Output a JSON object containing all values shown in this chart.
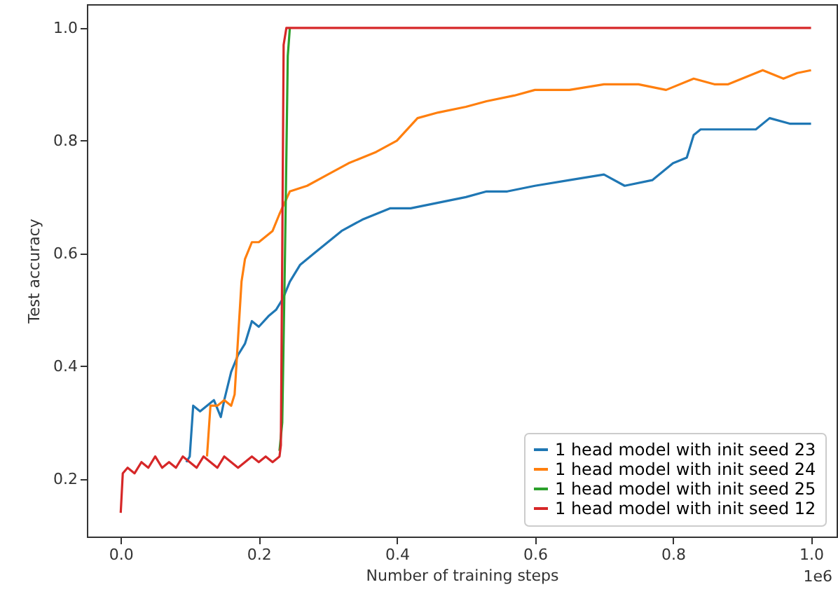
{
  "chart_data": {
    "type": "line",
    "xlabel": "Number of training steps",
    "ylabel": "Test accuracy",
    "annotations": [
      "1e6"
    ],
    "xlim": [
      -0.049,
      1.037
    ],
    "ylim": [
      0.098,
      1.042
    ],
    "xticks": [
      {
        "value": 0,
        "label": "0.0"
      },
      0.2,
      0.4,
      0.6,
      0.8,
      {
        "value": 1,
        "label": "1.0"
      }
    ],
    "yticks": [
      0.2,
      0.4,
      0.6,
      0.8,
      {
        "value": 1,
        "label": "1.0"
      }
    ],
    "grid": false,
    "legend": "bottom right",
    "series": [
      {
        "name": "1 head model with init seed 23",
        "color": "#1f77b4",
        "x": [
          0.095,
          0.1,
          0.105,
          0.115,
          0.125,
          0.135,
          0.145,
          0.15,
          0.16,
          0.17,
          0.18,
          0.19,
          0.2,
          0.215,
          0.225,
          0.235,
          0.245,
          0.26,
          0.28,
          0.3,
          0.32,
          0.35,
          0.39,
          0.42,
          0.46,
          0.5,
          0.53,
          0.56,
          0.6,
          0.65,
          0.7,
          0.73,
          0.77,
          0.8,
          0.82,
          0.83,
          0.84,
          0.88,
          0.92,
          0.94,
          0.97,
          1.0
        ],
        "values": [
          0.23,
          0.24,
          0.33,
          0.32,
          0.33,
          0.34,
          0.31,
          0.34,
          0.39,
          0.42,
          0.44,
          0.48,
          0.47,
          0.49,
          0.5,
          0.52,
          0.55,
          0.58,
          0.6,
          0.62,
          0.64,
          0.66,
          0.68,
          0.68,
          0.69,
          0.7,
          0.71,
          0.71,
          0.72,
          0.73,
          0.74,
          0.72,
          0.73,
          0.76,
          0.77,
          0.81,
          0.82,
          0.82,
          0.82,
          0.84,
          0.83,
          0.83
        ]
      },
      {
        "name": "1 head model with init seed 24",
        "color": "#ff7f0e",
        "x": [
          0.125,
          0.13,
          0.14,
          0.15,
          0.16,
          0.165,
          0.17,
          0.175,
          0.18,
          0.19,
          0.2,
          0.21,
          0.22,
          0.23,
          0.245,
          0.27,
          0.3,
          0.33,
          0.37,
          0.4,
          0.43,
          0.46,
          0.5,
          0.53,
          0.57,
          0.6,
          0.65,
          0.7,
          0.75,
          0.79,
          0.83,
          0.86,
          0.88,
          0.9,
          0.93,
          0.96,
          0.98,
          1.0
        ],
        "values": [
          0.24,
          0.33,
          0.33,
          0.34,
          0.33,
          0.35,
          0.45,
          0.55,
          0.59,
          0.62,
          0.62,
          0.63,
          0.64,
          0.67,
          0.71,
          0.72,
          0.74,
          0.76,
          0.78,
          0.8,
          0.84,
          0.85,
          0.86,
          0.87,
          0.88,
          0.89,
          0.89,
          0.9,
          0.9,
          0.89,
          0.91,
          0.9,
          0.9,
          0.91,
          0.925,
          0.91,
          0.92,
          0.925
        ]
      },
      {
        "name": "1 head model with init seed 25",
        "color": "#2ca02c",
        "x": [
          0.23,
          0.234,
          0.238,
          0.242,
          0.245
        ],
        "values": [
          0.25,
          0.3,
          0.6,
          0.95,
          1.0
        ]
      },
      {
        "name": "1 head model with init seed 12",
        "color": "#d62728",
        "x": [
          0,
          0.003,
          0.01,
          0.02,
          0.03,
          0.04,
          0.05,
          0.06,
          0.07,
          0.08,
          0.09,
          0.1,
          0.11,
          0.12,
          0.13,
          0.14,
          0.15,
          0.16,
          0.17,
          0.18,
          0.19,
          0.2,
          0.21,
          0.22,
          0.23,
          0.232,
          0.234,
          0.236,
          0.24,
          0.3,
          0.5,
          0.7,
          0.9,
          1.0
        ],
        "values": [
          0.14,
          0.21,
          0.22,
          0.21,
          0.23,
          0.22,
          0.24,
          0.22,
          0.23,
          0.22,
          0.24,
          0.23,
          0.22,
          0.24,
          0.23,
          0.22,
          0.24,
          0.23,
          0.22,
          0.23,
          0.24,
          0.23,
          0.24,
          0.23,
          0.24,
          0.26,
          0.6,
          0.97,
          1.0,
          1.0,
          1.0,
          1.0,
          1.0,
          1.0
        ]
      }
    ]
  }
}
